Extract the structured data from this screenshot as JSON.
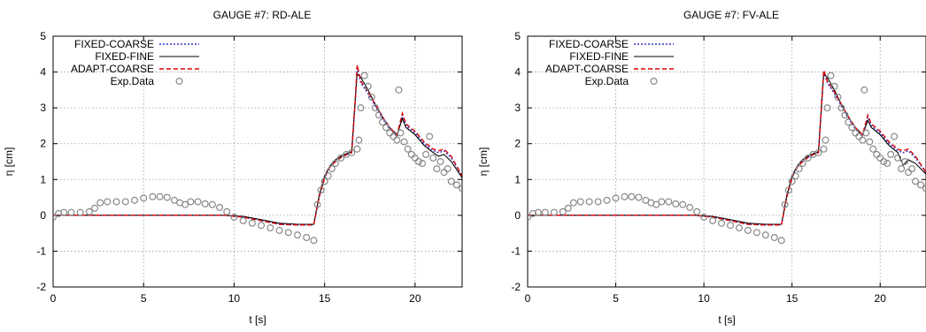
{
  "figure": {
    "panels": 2
  },
  "chart_data": [
    {
      "type": "line",
      "title": "GAUGE #7: RD-ALE",
      "xlabel": "t [s]",
      "ylabel": "η [cm]",
      "xlim": [
        0,
        22.6
      ],
      "ylim": [
        -2,
        5
      ],
      "xticks": [
        "0",
        "5",
        "10",
        "15",
        "20"
      ],
      "yticks": [
        "-2",
        "-1",
        "0",
        "1",
        "2",
        "3",
        "4",
        "5"
      ],
      "grid": true,
      "legend_position": "top-left",
      "series": [
        {
          "name": "FIXED-COARSE",
          "style": "dotted",
          "color": "#3333cc",
          "x": [
            0,
            2,
            4,
            6,
            8,
            9.5,
            10.5,
            11.5,
            12.5,
            13.5,
            14.4,
            14.7,
            15.0,
            15.3,
            15.6,
            16.0,
            16.5,
            16.7,
            16.8,
            17.0,
            17.4,
            17.8,
            18.2,
            18.6,
            19.0,
            19.3,
            19.5,
            20.0,
            20.5,
            21.0,
            21.3,
            21.6,
            22.0,
            22.6
          ],
          "y": [
            0,
            0,
            0,
            0,
            0,
            0,
            -0.05,
            -0.15,
            -0.25,
            -0.27,
            -0.27,
            0.5,
            1.05,
            1.35,
            1.5,
            1.65,
            1.75,
            3.2,
            4.1,
            3.7,
            3.4,
            3.05,
            2.7,
            2.4,
            2.2,
            2.8,
            2.5,
            2.3,
            2.0,
            1.8,
            1.75,
            1.8,
            1.6,
            1.1
          ]
        },
        {
          "name": "FIXED-FINE",
          "style": "solid",
          "color": "#000000",
          "x": [
            0,
            2,
            4,
            6,
            8,
            9.5,
            10.5,
            11.5,
            12.5,
            13.5,
            14.4,
            14.7,
            15.0,
            15.3,
            15.6,
            16.0,
            16.5,
            16.7,
            16.8,
            17.0,
            17.4,
            17.8,
            18.2,
            18.6,
            19.0,
            19.3,
            19.5,
            20.0,
            20.5,
            21.0,
            21.3,
            21.6,
            22.0,
            22.6
          ],
          "y": [
            0,
            0,
            0,
            0,
            0,
            0,
            -0.03,
            -0.12,
            -0.22,
            -0.25,
            -0.25,
            0.55,
            1.1,
            1.38,
            1.55,
            1.68,
            1.78,
            3.3,
            3.95,
            3.85,
            3.5,
            3.1,
            2.75,
            2.45,
            2.25,
            2.7,
            2.45,
            2.25,
            1.95,
            1.75,
            1.65,
            1.7,
            1.5,
            1.05
          ]
        },
        {
          "name": "ADAPT-COARSE",
          "style": "dashed",
          "color": "#dd0000",
          "x": [
            0,
            2,
            4,
            6,
            8,
            9.5,
            10.5,
            11.5,
            12.5,
            13.5,
            14.4,
            14.7,
            15.0,
            15.3,
            15.6,
            16.0,
            16.5,
            16.7,
            16.8,
            17.0,
            17.4,
            17.8,
            18.2,
            18.6,
            19.0,
            19.3,
            19.5,
            20.0,
            20.5,
            21.0,
            21.3,
            21.6,
            22.0,
            22.6
          ],
          "y": [
            0,
            0,
            0,
            0,
            0,
            0,
            -0.05,
            -0.15,
            -0.25,
            -0.27,
            -0.27,
            0.5,
            1.05,
            1.35,
            1.5,
            1.65,
            1.75,
            3.25,
            4.2,
            3.75,
            3.45,
            3.1,
            2.75,
            2.45,
            2.25,
            2.85,
            2.55,
            2.35,
            2.05,
            1.85,
            1.8,
            1.85,
            1.65,
            1.1
          ]
        },
        {
          "name": "Exp.Data",
          "style": "markers",
          "color": "#888888",
          "x": [
            0,
            0.3,
            0.6,
            1.0,
            1.5,
            2.0,
            2.3,
            2.6,
            3.0,
            3.5,
            4.0,
            4.5,
            5.0,
            5.5,
            5.9,
            6.3,
            6.7,
            7.0,
            7.3,
            7.6,
            8.0,
            8.4,
            8.8,
            9.2,
            9.6,
            10.0,
            10.5,
            11.0,
            11.5,
            12.0,
            12.5,
            13.0,
            13.5,
            14.0,
            14.4,
            14.6,
            14.8,
            15.0,
            15.2,
            15.4,
            15.6,
            15.9,
            16.2,
            16.5,
            16.8,
            16.9,
            17.0,
            17.2,
            17.4,
            17.6,
            17.8,
            18.0,
            18.2,
            18.4,
            18.6,
            18.8,
            19.0,
            19.1,
            19.2,
            19.4,
            19.6,
            19.8,
            20.0,
            20.2,
            20.4,
            20.6,
            20.8,
            21.0,
            21.2,
            21.4,
            21.6,
            21.8,
            22.0,
            22.3,
            22.6
          ],
          "y": [
            -0.05,
            0.05,
            0.08,
            0.08,
            0.08,
            0.1,
            0.2,
            0.35,
            0.38,
            0.38,
            0.38,
            0.42,
            0.48,
            0.52,
            0.52,
            0.5,
            0.42,
            0.35,
            0.3,
            0.38,
            0.38,
            0.32,
            0.3,
            0.22,
            0.1,
            -0.05,
            -0.15,
            -0.22,
            -0.28,
            -0.35,
            -0.42,
            -0.48,
            -0.55,
            -0.62,
            -0.7,
            0.3,
            0.7,
            0.95,
            1.1,
            1.3,
            1.45,
            1.6,
            1.7,
            1.75,
            1.85,
            2.1,
            3.0,
            3.9,
            3.6,
            3.3,
            3.0,
            2.8,
            2.6,
            2.45,
            2.3,
            2.2,
            2.1,
            3.5,
            2.3,
            2.05,
            1.85,
            1.7,
            1.6,
            1.5,
            1.45,
            1.7,
            2.2,
            1.6,
            1.3,
            1.5,
            1.2,
            1.3,
            0.95,
            0.85,
            0.75
          ]
        }
      ]
    },
    {
      "type": "line",
      "title": "GAUGE #7: FV-ALE",
      "xlabel": "t [s]",
      "ylabel": "η [cm]",
      "xlim": [
        0,
        22.6
      ],
      "ylim": [
        -2,
        5
      ],
      "xticks": [
        "0",
        "5",
        "10",
        "15",
        "20"
      ],
      "yticks": [
        "-2",
        "-1",
        "0",
        "1",
        "2",
        "3",
        "4",
        "5"
      ],
      "grid": true,
      "legend_position": "top-left",
      "series": [
        {
          "name": "FIXED-COARSE",
          "style": "dotted",
          "color": "#3333cc",
          "x": [
            0,
            2,
            4,
            6,
            8,
            9.5,
            10.5,
            11.5,
            12.5,
            13.5,
            14.4,
            14.7,
            15.0,
            15.3,
            15.6,
            16.0,
            16.5,
            16.7,
            16.8,
            17.0,
            17.4,
            17.8,
            18.2,
            18.6,
            19.0,
            19.3,
            19.5,
            20.0,
            20.5,
            21.0,
            21.3,
            21.6,
            22.0,
            22.6
          ],
          "y": [
            0,
            0,
            0,
            0,
            0,
            0,
            -0.05,
            -0.15,
            -0.25,
            -0.27,
            -0.27,
            0.5,
            1.05,
            1.35,
            1.5,
            1.65,
            1.75,
            3.2,
            4.0,
            3.7,
            3.4,
            3.05,
            2.7,
            2.4,
            2.2,
            2.75,
            2.5,
            2.3,
            2.0,
            1.8,
            1.75,
            1.8,
            1.6,
            1.2
          ]
        },
        {
          "name": "FIXED-FINE",
          "style": "solid",
          "color": "#000000",
          "x": [
            0,
            2,
            4,
            6,
            8,
            9.5,
            10.5,
            11.5,
            12.5,
            13.5,
            14.4,
            14.7,
            15.0,
            15.3,
            15.6,
            16.0,
            16.5,
            16.7,
            16.8,
            17.0,
            17.4,
            17.8,
            18.2,
            18.6,
            19.0,
            19.3,
            19.5,
            20.0,
            20.5,
            21.0,
            21.3,
            21.6,
            22.0,
            22.6
          ],
          "y": [
            0,
            0,
            0,
            0,
            0,
            0,
            -0.03,
            -0.12,
            -0.22,
            -0.25,
            -0.25,
            0.55,
            1.1,
            1.38,
            1.55,
            1.68,
            1.78,
            3.3,
            3.95,
            3.85,
            3.5,
            3.1,
            2.75,
            2.45,
            2.25,
            2.65,
            2.45,
            2.25,
            1.95,
            1.75,
            1.4,
            1.55,
            1.45,
            1.15
          ]
        },
        {
          "name": "ADAPT-COARSE",
          "style": "dashed",
          "color": "#dd0000",
          "x": [
            0,
            2,
            4,
            6,
            8,
            9.5,
            10.5,
            11.5,
            12.5,
            13.5,
            14.4,
            14.7,
            15.0,
            15.3,
            15.6,
            16.0,
            16.5,
            16.7,
            16.8,
            17.0,
            17.4,
            17.8,
            18.2,
            18.6,
            19.0,
            19.3,
            19.5,
            20.0,
            20.5,
            21.0,
            21.3,
            21.6,
            22.0,
            22.6
          ],
          "y": [
            0,
            0,
            0,
            0,
            0,
            0,
            -0.05,
            -0.15,
            -0.25,
            -0.27,
            -0.27,
            0.5,
            1.05,
            1.35,
            1.5,
            1.65,
            1.75,
            3.25,
            4.05,
            3.75,
            3.45,
            3.1,
            2.75,
            2.45,
            2.25,
            2.8,
            2.55,
            2.35,
            2.05,
            1.85,
            1.8,
            1.85,
            1.65,
            1.2
          ]
        },
        {
          "name": "Exp.Data",
          "style": "markers",
          "color": "#888888",
          "x": [
            0,
            0.3,
            0.6,
            1.0,
            1.5,
            2.0,
            2.3,
            2.6,
            3.0,
            3.5,
            4.0,
            4.5,
            5.0,
            5.5,
            5.9,
            6.3,
            6.7,
            7.0,
            7.3,
            7.6,
            8.0,
            8.4,
            8.8,
            9.2,
            9.6,
            10.0,
            10.5,
            11.0,
            11.5,
            12.0,
            12.5,
            13.0,
            13.5,
            14.0,
            14.4,
            14.6,
            14.8,
            15.0,
            15.2,
            15.4,
            15.6,
            15.9,
            16.2,
            16.5,
            16.8,
            16.9,
            17.0,
            17.2,
            17.4,
            17.6,
            17.8,
            18.0,
            18.2,
            18.4,
            18.6,
            18.8,
            19.0,
            19.1,
            19.2,
            19.4,
            19.6,
            19.8,
            20.0,
            20.2,
            20.4,
            20.6,
            20.8,
            21.0,
            21.2,
            21.4,
            21.6,
            21.8,
            22.0,
            22.3,
            22.6
          ],
          "y": [
            -0.05,
            0.05,
            0.08,
            0.08,
            0.08,
            0.1,
            0.2,
            0.35,
            0.38,
            0.38,
            0.38,
            0.42,
            0.48,
            0.52,
            0.52,
            0.5,
            0.42,
            0.35,
            0.3,
            0.38,
            0.38,
            0.32,
            0.3,
            0.22,
            0.1,
            -0.05,
            -0.15,
            -0.22,
            -0.28,
            -0.35,
            -0.42,
            -0.48,
            -0.55,
            -0.62,
            -0.7,
            0.3,
            0.7,
            0.95,
            1.1,
            1.3,
            1.45,
            1.6,
            1.7,
            1.75,
            1.85,
            2.1,
            3.0,
            3.9,
            3.6,
            3.3,
            3.0,
            2.8,
            2.6,
            2.45,
            2.3,
            2.2,
            2.1,
            3.5,
            2.3,
            2.05,
            1.85,
            1.7,
            1.6,
            1.5,
            1.45,
            1.7,
            2.2,
            1.6,
            1.3,
            1.5,
            1.2,
            1.3,
            0.95,
            0.85,
            0.75
          ]
        }
      ]
    }
  ]
}
